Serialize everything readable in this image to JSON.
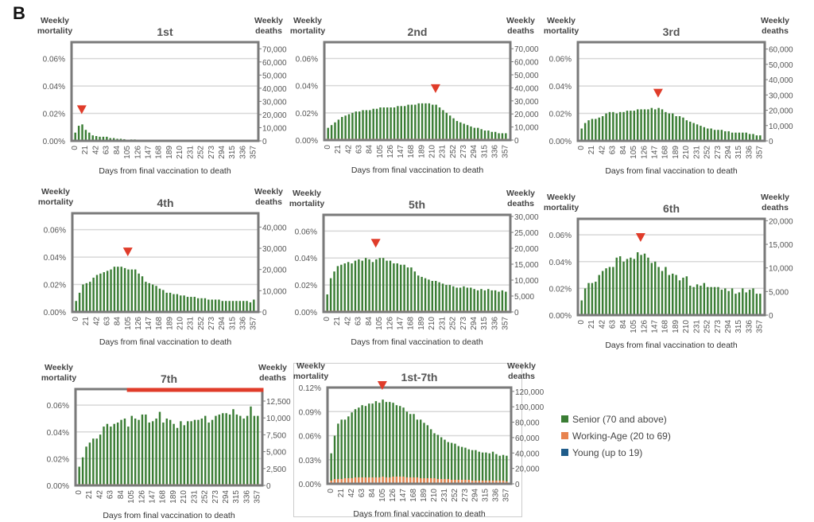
{
  "panel_label": "B",
  "colors": {
    "senior": "#3a7d34",
    "working_age": "#e8834e",
    "young": "#1f5c8a",
    "marker": "#e03c2a",
    "frame": "#7a7a7a",
    "grid": "#d8d8d8",
    "text": "#555555"
  },
  "legend": [
    {
      "key": "senior",
      "label": "Senior (70 and above)"
    },
    {
      "key": "working_age",
      "label": "Working-Age (20 to 69)"
    },
    {
      "key": "young",
      "label": "Young (up to 19)"
    }
  ],
  "chart_data": [
    {
      "type": "bar",
      "title": "1st",
      "ylabel_left": [
        "Weekly",
        "mortality"
      ],
      "ylabel_right": [
        "Weekly",
        "deaths"
      ],
      "xlabel": "Days from final vaccination to death",
      "x_ticks": [
        0,
        21,
        42,
        63,
        84,
        105,
        126,
        147,
        168,
        189,
        210,
        231,
        252,
        273,
        294,
        315,
        336,
        357
      ],
      "x_step_days": 7,
      "left_ticks": [
        "0.00%",
        "0.02%",
        "0.04%",
        "0.06%"
      ],
      "left_tick_values": [
        0,
        0.02,
        0.04,
        0.06
      ],
      "ylim_left": [
        0,
        0.072
      ],
      "right_ticks": [
        "0",
        "10,000",
        "20,000",
        "30,000",
        "40,000",
        "50,000",
        "60,000",
        "70,000"
      ],
      "right_tick_values": [
        0,
        10000,
        20000,
        30000,
        40000,
        50000,
        60000,
        70000
      ],
      "ylim_right": [
        0,
        75000
      ],
      "marker": {
        "type": "arrow",
        "day": 14
      },
      "senior": [
        0.006,
        0.011,
        0.012,
        0.008,
        0.006,
        0.004,
        0.0035,
        0.003,
        0.003,
        0.003,
        0.002,
        0.002,
        0.0015,
        0.0015,
        0.0012,
        0,
        0.001,
        0.001,
        0,
        0,
        0,
        0,
        0,
        0,
        0,
        0,
        0,
        0,
        0,
        0,
        0,
        0,
        0,
        0,
        0,
        0,
        0,
        0,
        0,
        0,
        0,
        0,
        0,
        0,
        0,
        0,
        0,
        0,
        0,
        0,
        0,
        0
      ],
      "working_age": 0.0004
    },
    {
      "type": "bar",
      "title": "2nd",
      "ylabel_left": [
        "Weekly",
        "mortality"
      ],
      "ylabel_right": [
        "Weekly",
        "deaths"
      ],
      "xlabel": "Days from final vaccination to death",
      "x_ticks": [
        0,
        21,
        42,
        63,
        84,
        105,
        126,
        147,
        168,
        189,
        210,
        231,
        252,
        273,
        294,
        315,
        336,
        357
      ],
      "x_step_days": 7,
      "left_ticks": [
        "0.00%",
        "0.02%",
        "0.04%",
        "0.06%"
      ],
      "left_tick_values": [
        0,
        0.02,
        0.04,
        0.06
      ],
      "ylim_left": [
        0,
        0.072
      ],
      "right_ticks": [
        "0",
        "10,000",
        "20,000",
        "30,000",
        "40,000",
        "50,000",
        "60,000",
        "70,000"
      ],
      "right_tick_values": [
        0,
        10000,
        20000,
        30000,
        40000,
        50000,
        60000,
        70000
      ],
      "ylim_right": [
        0,
        75000
      ],
      "marker": {
        "type": "arrow",
        "day": 217
      },
      "senior": [
        0.009,
        0.011,
        0.013,
        0.015,
        0.017,
        0.018,
        0.019,
        0.02,
        0.021,
        0.021,
        0.022,
        0.022,
        0.022,
        0.023,
        0.023,
        0.024,
        0.024,
        0.024,
        0.024,
        0.024,
        0.025,
        0.025,
        0.025,
        0.026,
        0.026,
        0.026,
        0.027,
        0.027,
        0.027,
        0.027,
        0.026,
        0.026,
        0.024,
        0.022,
        0.02,
        0.018,
        0.016,
        0.014,
        0.013,
        0.012,
        0.011,
        0.01,
        0.009,
        0.009,
        0.008,
        0.007,
        0.007,
        0.006,
        0.006,
        0.005,
        0.005,
        0.005
      ],
      "working_age": 0.001
    },
    {
      "type": "bar",
      "title": "3rd",
      "ylabel_left": [
        "Weekly",
        "mortality"
      ],
      "ylabel_right": [
        "Weekly",
        "deaths"
      ],
      "xlabel": "Days from final vaccination to death",
      "x_ticks": [
        0,
        21,
        42,
        63,
        84,
        105,
        126,
        147,
        168,
        189,
        210,
        231,
        252,
        273,
        294,
        315,
        336,
        357
      ],
      "x_step_days": 7,
      "left_ticks": [
        "0.00%",
        "0.02%",
        "0.04%",
        "0.06%"
      ],
      "left_tick_values": [
        0,
        0.02,
        0.04,
        0.06
      ],
      "ylim_left": [
        0,
        0.072
      ],
      "right_ticks": [
        "0",
        "10,000",
        "20,000",
        "30,000",
        "40,000",
        "50,000",
        "60,000"
      ],
      "right_tick_values": [
        0,
        10000,
        20000,
        30000,
        40000,
        50000,
        60000
      ],
      "ylim_right": [
        0,
        64500
      ],
      "marker": {
        "type": "arrow",
        "day": 154
      },
      "senior": [
        0.009,
        0.013,
        0.015,
        0.016,
        0.016,
        0.017,
        0.018,
        0.02,
        0.021,
        0.021,
        0.02,
        0.021,
        0.021,
        0.022,
        0.022,
        0.022,
        0.023,
        0.023,
        0.023,
        0.023,
        0.024,
        0.023,
        0.024,
        0.023,
        0.021,
        0.02,
        0.02,
        0.018,
        0.018,
        0.017,
        0.015,
        0.014,
        0.013,
        0.012,
        0.011,
        0.01,
        0.009,
        0.009,
        0.008,
        0.008,
        0.008,
        0.007,
        0.007,
        0.006,
        0.006,
        0.006,
        0.006,
        0.006,
        0.005,
        0.005,
        0.004,
        0.004
      ],
      "working_age": 0.0008
    },
    {
      "type": "bar",
      "title": "4th",
      "ylabel_left": [
        "Weekly",
        "mortality"
      ],
      "ylabel_right": [
        "Weekly",
        "deaths"
      ],
      "xlabel": "Days from final vaccination to death",
      "x_ticks": [
        0,
        21,
        42,
        63,
        84,
        105,
        126,
        147,
        168,
        189,
        210,
        231,
        252,
        273,
        294,
        315,
        336,
        357
      ],
      "x_step_days": 7,
      "left_ticks": [
        "0.00%",
        "0.02%",
        "0.04%",
        "0.06%"
      ],
      "left_tick_values": [
        0,
        0.02,
        0.04,
        0.06
      ],
      "ylim_left": [
        0,
        0.072
      ],
      "right_ticks": [
        "0",
        "10,000",
        "20,000",
        "30,000",
        "40,000"
      ],
      "right_tick_values": [
        0,
        10000,
        20000,
        30000,
        40000
      ],
      "ylim_right": [
        0,
        46500
      ],
      "marker": {
        "type": "arrow",
        "day": 105
      },
      "senior": [
        0.008,
        0.014,
        0.02,
        0.021,
        0.022,
        0.025,
        0.027,
        0.028,
        0.029,
        0.03,
        0.031,
        0.033,
        0.033,
        0.033,
        0.032,
        0.031,
        0.031,
        0.031,
        0.028,
        0.026,
        0.022,
        0.021,
        0.02,
        0.019,
        0.017,
        0.016,
        0.014,
        0.014,
        0.013,
        0.013,
        0.012,
        0.012,
        0.011,
        0.011,
        0.011,
        0.01,
        0.01,
        0.01,
        0.009,
        0.009,
        0.009,
        0.009,
        0.008,
        0.008,
        0.008,
        0.008,
        0.008,
        0.008,
        0.008,
        0.008,
        0.007,
        0.009
      ],
      "working_age": 0.0008
    },
    {
      "type": "bar",
      "title": "5th",
      "ylabel_left": [
        "Weekly",
        "mortality"
      ],
      "ylabel_right": [
        "Weekly",
        "deaths"
      ],
      "xlabel": "Days from final vaccination to death",
      "x_ticks": [
        0,
        21,
        42,
        63,
        84,
        105,
        126,
        147,
        168,
        189,
        210,
        231,
        252,
        273,
        294,
        315,
        336,
        357
      ],
      "x_step_days": 7,
      "left_ticks": [
        "0.00%",
        "0.02%",
        "0.04%",
        "0.06%"
      ],
      "left_tick_values": [
        0,
        0.02,
        0.04,
        0.06
      ],
      "ylim_left": [
        0,
        0.072
      ],
      "right_ticks": [
        "0",
        "5,000",
        "10,000",
        "15,000",
        "20,000",
        "25,000",
        "30,000"
      ],
      "right_tick_values": [
        0,
        5000,
        10000,
        15000,
        20000,
        25000,
        30000
      ],
      "ylim_right": [
        0,
        30500
      ],
      "marker": {
        "type": "arrow",
        "day": 98
      },
      "senior": [
        0.013,
        0.025,
        0.03,
        0.034,
        0.035,
        0.036,
        0.037,
        0.036,
        0.038,
        0.039,
        0.038,
        0.04,
        0.039,
        0.037,
        0.039,
        0.04,
        0.04,
        0.038,
        0.038,
        0.036,
        0.036,
        0.035,
        0.035,
        0.033,
        0.033,
        0.03,
        0.027,
        0.026,
        0.025,
        0.024,
        0.023,
        0.023,
        0.022,
        0.021,
        0.02,
        0.02,
        0.019,
        0.018,
        0.018,
        0.019,
        0.018,
        0.018,
        0.017,
        0.016,
        0.017,
        0.016,
        0.017,
        0.016,
        0.016,
        0.015,
        0.016,
        0.015
      ],
      "working_age": 0.001
    },
    {
      "type": "bar",
      "title": "6th",
      "ylabel_left": [
        "Weekly",
        "mortality"
      ],
      "ylabel_right": [
        "Weekly",
        "deaths"
      ],
      "xlabel": "Days from final vaccination to death",
      "x_ticks": [
        0,
        21,
        42,
        63,
        84,
        105,
        126,
        147,
        168,
        189,
        210,
        231,
        252,
        273,
        294,
        315,
        336,
        357
      ],
      "x_step_days": 7,
      "left_ticks": [
        "0.00%",
        "0.02%",
        "0.04%",
        "0.06%"
      ],
      "left_tick_values": [
        0,
        0.02,
        0.04,
        0.06
      ],
      "ylim_left": [
        0,
        0.072
      ],
      "right_ticks": [
        "0",
        "5,000",
        "10,000",
        "15,000",
        "20,000"
      ],
      "right_tick_values": [
        0,
        5000,
        10000,
        15000,
        20000
      ],
      "ylim_right": [
        0,
        20400
      ],
      "marker": {
        "type": "arrow",
        "day": 119
      },
      "senior": [
        0.011,
        0.02,
        0.024,
        0.024,
        0.025,
        0.03,
        0.033,
        0.035,
        0.036,
        0.036,
        0.043,
        0.044,
        0.04,
        0.042,
        0.043,
        0.042,
        0.047,
        0.045,
        0.046,
        0.043,
        0.039,
        0.04,
        0.036,
        0.033,
        0.036,
        0.03,
        0.031,
        0.03,
        0.026,
        0.028,
        0.029,
        0.022,
        0.021,
        0.023,
        0.022,
        0.024,
        0.021,
        0.021,
        0.021,
        0.021,
        0.019,
        0.02,
        0.018,
        0.02,
        0.016,
        0.017,
        0.02,
        0.017,
        0.019,
        0.02,
        0.016,
        0.016
      ],
      "working_age": 0.0007
    },
    {
      "type": "bar",
      "title": "7th",
      "ylabel_left": [
        "Weekly",
        "mortality"
      ],
      "ylabel_right": [
        "Weekly",
        "deaths"
      ],
      "xlabel": "Days from final vaccination to death",
      "x_ticks": [
        0,
        21,
        42,
        63,
        84,
        105,
        126,
        147,
        168,
        189,
        210,
        231,
        252,
        273,
        294,
        315,
        336,
        357
      ],
      "x_step_days": 7,
      "left_ticks": [
        "0.00%",
        "0.02%",
        "0.04%",
        "0.06%"
      ],
      "left_tick_values": [
        0,
        0.02,
        0.04,
        0.06
      ],
      "ylim_left": [
        0,
        0.072
      ],
      "right_ticks": [
        "0",
        "2,500",
        "5,000",
        "7,500",
        "10,000",
        "12,500"
      ],
      "right_tick_values": [
        0,
        2500,
        5000,
        7500,
        10000,
        12500
      ],
      "ylim_right": [
        0,
        14270
      ],
      "marker": {
        "type": "range",
        "day": 98
      },
      "senior": [
        0.014,
        0.021,
        0.029,
        0.032,
        0.035,
        0.035,
        0.038,
        0.044,
        0.046,
        0.044,
        0.046,
        0.047,
        0.049,
        0.05,
        0.044,
        0.052,
        0.05,
        0.049,
        0.053,
        0.053,
        0.047,
        0.048,
        0.05,
        0.055,
        0.047,
        0.05,
        0.049,
        0.046,
        0.043,
        0.048,
        0.045,
        0.048,
        0.048,
        0.049,
        0.049,
        0.05,
        0.052,
        0.047,
        0.049,
        0.052,
        0.053,
        0.054,
        0.054,
        0.053,
        0.057,
        0.053,
        0.052,
        0.05,
        0.052,
        0.059,
        0.052,
        0.052
      ],
      "working_age": 0.001
    },
    {
      "type": "bar",
      "title": "1st-7th",
      "ylabel_left": [
        "Weekly",
        "mortality"
      ],
      "ylabel_right": [
        "Weekly",
        "deaths"
      ],
      "xlabel": "Days from final vaccination to death",
      "x_ticks": [
        0,
        21,
        42,
        63,
        84,
        105,
        126,
        147,
        168,
        189,
        210,
        231,
        252,
        273,
        294,
        315,
        336,
        357
      ],
      "x_step_days": 7,
      "left_ticks": [
        "0.00%",
        "0.03%",
        "0.06%",
        "0.09%",
        "0.12%"
      ],
      "left_tick_values": [
        0,
        0.03,
        0.06,
        0.09,
        0.12
      ],
      "ylim_left": [
        0,
        0.12
      ],
      "right_ticks": [
        "0",
        "20,000",
        "40,000",
        "60,000",
        "80,000",
        "100,000",
        "120,000"
      ],
      "right_tick_values": [
        0,
        20000,
        40000,
        60000,
        80000,
        100000,
        120000
      ],
      "ylim_right": [
        0,
        125000
      ],
      "marker": {
        "type": "arrow",
        "day": 105
      },
      "senior": [
        0.038,
        0.06,
        0.075,
        0.08,
        0.08,
        0.084,
        0.089,
        0.093,
        0.095,
        0.098,
        0.097,
        0.1,
        0.1,
        0.103,
        0.101,
        0.105,
        0.102,
        0.102,
        0.101,
        0.098,
        0.097,
        0.095,
        0.09,
        0.087,
        0.087,
        0.08,
        0.08,
        0.076,
        0.073,
        0.068,
        0.063,
        0.061,
        0.058,
        0.055,
        0.052,
        0.051,
        0.05,
        0.047,
        0.046,
        0.045,
        0.043,
        0.042,
        0.042,
        0.04,
        0.039,
        0.039,
        0.038,
        0.04,
        0.037,
        0.035,
        0.036,
        0.035
      ],
      "working_age": [
        0.004,
        0.006,
        0.006,
        0.006,
        0.007,
        0.007,
        0.007,
        0.008,
        0.008,
        0.008,
        0.008,
        0.008,
        0.008,
        0.008,
        0.008,
        0.009,
        0.008,
        0.008,
        0.009,
        0.009,
        0.009,
        0.009,
        0.008,
        0.008,
        0.008,
        0.008,
        0.007,
        0.007,
        0.007,
        0.007,
        0.007,
        0.006,
        0.006,
        0.006,
        0.006,
        0.005,
        0.005,
        0.005,
        0.005,
        0.005,
        0.005,
        0.004,
        0.004,
        0.004,
        0.004,
        0.004,
        0.004,
        0.004,
        0.004,
        0.004,
        0.004,
        0.003
      ]
    }
  ]
}
